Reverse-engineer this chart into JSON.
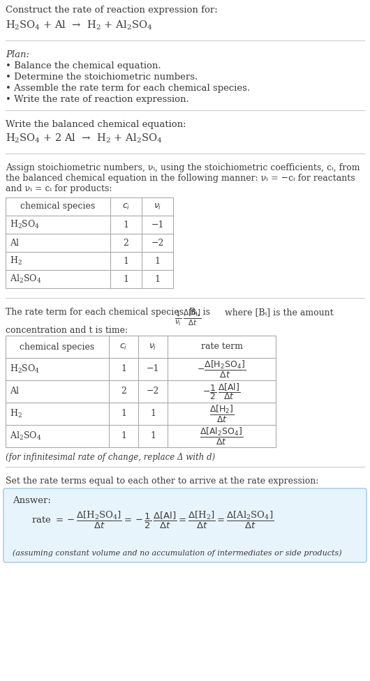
{
  "bg_color": "#ffffff",
  "text_color": "#3a3a3a",
  "table_border_color": "#aaaaaa",
  "section_sep_color": "#cccccc",
  "answer_box_bg": "#e8f4fc",
  "answer_box_border": "#a0c8e8",
  "font_size": 9.5,
  "title_line1": "Construct the rate of reaction expression for:",
  "plan_header": "Plan:",
  "plan_items": [
    "• Balance the chemical equation.",
    "• Determine the stoichiometric numbers.",
    "• Assemble the rate term for each chemical species.",
    "• Write the rate of reaction expression."
  ],
  "balanced_header": "Write the balanced chemical equation:",
  "stoich_intro": [
    "Assign stoichiometric numbers, νᵢ, using the stoichiometric coefficients, cᵢ, from",
    "the balanced chemical equation in the following manner: νᵢ = −cᵢ for reactants",
    "and νᵢ = cᵢ for products:"
  ],
  "table1_rows": [
    [
      "H₂SO₄",
      "1",
      "−1"
    ],
    [
      "Al",
      "2",
      "−2"
    ],
    [
      "H₂",
      "1",
      "1"
    ],
    [
      "Al₂SO₄",
      "1",
      "1"
    ]
  ],
  "rate_intro_pre": "The rate term for each chemical species, Bᵢ, is ",
  "rate_intro_post": " where [Bᵢ] is the amount",
  "rate_intro_line2": "concentration and t is time:",
  "table2_rows": [
    [
      "H₂SO₄",
      "1",
      "−1"
    ],
    [
      "Al",
      "2",
      "−2"
    ],
    [
      "H₂",
      "1",
      "1"
    ],
    [
      "Al₂SO₄",
      "1",
      "1"
    ]
  ],
  "infinitesimal": "(for infinitesimal rate of change, replace Δ with d)",
  "set_equal": "Set the rate terms equal to each other to arrive at the rate expression:",
  "answer_label": "Answer:",
  "assuming": "(assuming constant volume and no accumulation of intermediates or side products)"
}
